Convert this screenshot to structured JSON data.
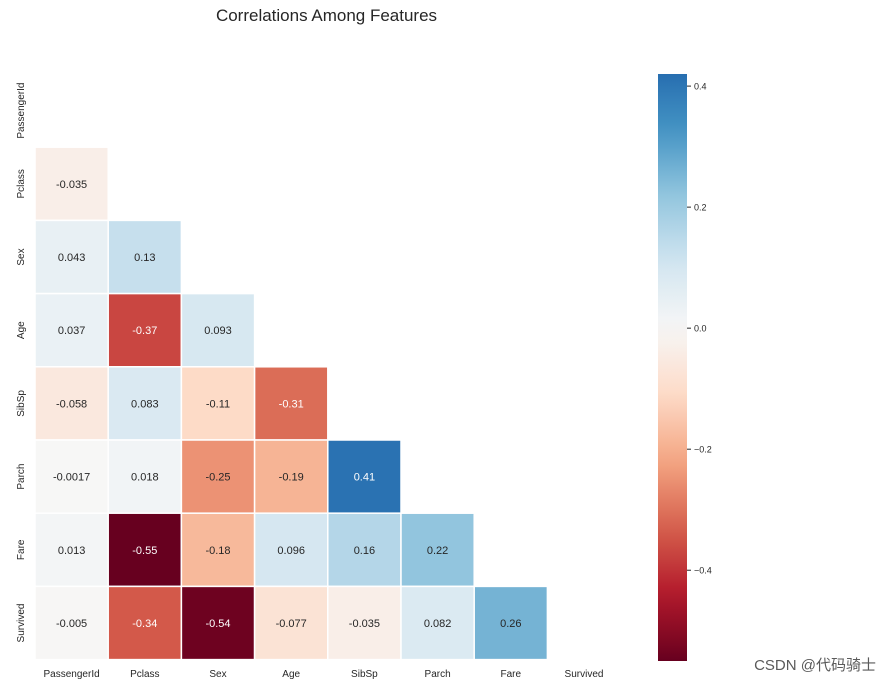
{
  "chart_data": {
    "type": "heatmap",
    "title": "Correlations Among Features",
    "variables": [
      "PassengerId",
      "Pclass",
      "Sex",
      "Age",
      "SibSp",
      "Parch",
      "Fare",
      "Survived"
    ],
    "mask": "upper-triangle-and-diagonal",
    "cells": [
      {
        "row": "Pclass",
        "col": "PassengerId",
        "value": -0.035,
        "label": "-0.035"
      },
      {
        "row": "Sex",
        "col": "PassengerId",
        "value": 0.043,
        "label": "0.043"
      },
      {
        "row": "Sex",
        "col": "Pclass",
        "value": 0.13,
        "label": "0.13"
      },
      {
        "row": "Age",
        "col": "PassengerId",
        "value": 0.037,
        "label": "0.037"
      },
      {
        "row": "Age",
        "col": "Pclass",
        "value": -0.37,
        "label": "-0.37"
      },
      {
        "row": "Age",
        "col": "Sex",
        "value": 0.093,
        "label": "0.093"
      },
      {
        "row": "SibSp",
        "col": "PassengerId",
        "value": -0.058,
        "label": "-0.058"
      },
      {
        "row": "SibSp",
        "col": "Pclass",
        "value": 0.083,
        "label": "0.083"
      },
      {
        "row": "SibSp",
        "col": "Sex",
        "value": -0.11,
        "label": "-0.11"
      },
      {
        "row": "SibSp",
        "col": "Age",
        "value": -0.31,
        "label": "-0.31"
      },
      {
        "row": "Parch",
        "col": "PassengerId",
        "value": -0.0017,
        "label": "-0.0017"
      },
      {
        "row": "Parch",
        "col": "Pclass",
        "value": 0.018,
        "label": "0.018"
      },
      {
        "row": "Parch",
        "col": "Sex",
        "value": -0.25,
        "label": "-0.25"
      },
      {
        "row": "Parch",
        "col": "Age",
        "value": -0.19,
        "label": "-0.19"
      },
      {
        "row": "Parch",
        "col": "SibSp",
        "value": 0.41,
        "label": "0.41"
      },
      {
        "row": "Fare",
        "col": "PassengerId",
        "value": 0.013,
        "label": "0.013"
      },
      {
        "row": "Fare",
        "col": "Pclass",
        "value": -0.55,
        "label": "-0.55"
      },
      {
        "row": "Fare",
        "col": "Sex",
        "value": -0.18,
        "label": "-0.18"
      },
      {
        "row": "Fare",
        "col": "Age",
        "value": 0.096,
        "label": "0.096"
      },
      {
        "row": "Fare",
        "col": "SibSp",
        "value": 0.16,
        "label": "0.16"
      },
      {
        "row": "Fare",
        "col": "Parch",
        "value": 0.22,
        "label": "0.22"
      },
      {
        "row": "Survived",
        "col": "PassengerId",
        "value": -0.005,
        "label": "-0.005"
      },
      {
        "row": "Survived",
        "col": "Pclass",
        "value": -0.34,
        "label": "-0.34"
      },
      {
        "row": "Survived",
        "col": "Sex",
        "value": -0.54,
        "label": "-0.54"
      },
      {
        "row": "Survived",
        "col": "Age",
        "value": -0.077,
        "label": "-0.077"
      },
      {
        "row": "Survived",
        "col": "SibSp",
        "value": -0.035,
        "label": "-0.035"
      },
      {
        "row": "Survived",
        "col": "Parch",
        "value": 0.082,
        "label": "0.082"
      },
      {
        "row": "Survived",
        "col": "Fare",
        "value": 0.26,
        "label": "0.26"
      }
    ],
    "colorbar": {
      "colormap": "RdBu",
      "vmin": -0.55,
      "vmax": 0.42,
      "ticks": [
        0.4,
        0.2,
        0.0,
        -0.2,
        -0.4
      ],
      "tick_labels": [
        "0.4",
        "0.2",
        "0.0",
        "−0.2",
        "−0.4"
      ]
    },
    "legend_position": "right"
  },
  "watermark": "CSDN @代码骑士"
}
